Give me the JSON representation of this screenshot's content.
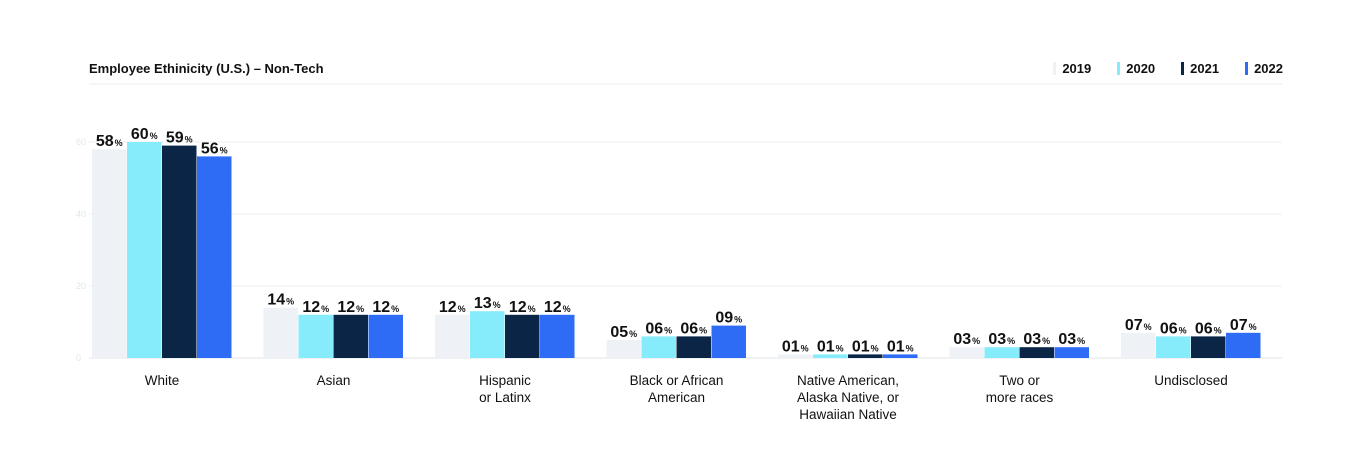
{
  "chart_data": {
    "type": "bar",
    "title": "Employee Ethinicity (U.S.) – Non-Tech",
    "ylim": [
      0,
      60
    ],
    "yticks": [
      0,
      20,
      40,
      60
    ],
    "grid": true,
    "legend_position": "top-right",
    "value_suffix": "%",
    "categories": [
      [
        "White"
      ],
      [
        "Asian"
      ],
      [
        "Hispanic",
        "or Latinx"
      ],
      [
        "Black or African",
        "American"
      ],
      [
        "Native American,",
        "Alaska Native, or",
        "Hawaiian Native"
      ],
      [
        "Two or",
        "more races"
      ],
      [
        "Undisclosed"
      ]
    ],
    "series": [
      {
        "name": "2019",
        "color": "#eef2f6",
        "values": [
          58,
          14,
          12,
          5,
          1,
          3,
          7
        ],
        "labels": [
          "58",
          "14",
          "12",
          "05",
          "01",
          "03",
          "07"
        ]
      },
      {
        "name": "2020",
        "color": "#86ebfa",
        "values": [
          60,
          12,
          13,
          6,
          1,
          3,
          6
        ],
        "labels": [
          "60",
          "12",
          "13",
          "06",
          "01",
          "03",
          "06"
        ]
      },
      {
        "name": "2021",
        "color": "#0b2547",
        "values": [
          59,
          12,
          12,
          6,
          1,
          3,
          6
        ],
        "labels": [
          "59",
          "12",
          "12",
          "06",
          "01",
          "03",
          "06"
        ]
      },
      {
        "name": "2022",
        "color": "#2f6cf6",
        "values": [
          56,
          12,
          12,
          9,
          1,
          3,
          7
        ],
        "labels": [
          "56",
          "12",
          "12",
          "09",
          "01",
          "03",
          "07"
        ]
      }
    ]
  }
}
